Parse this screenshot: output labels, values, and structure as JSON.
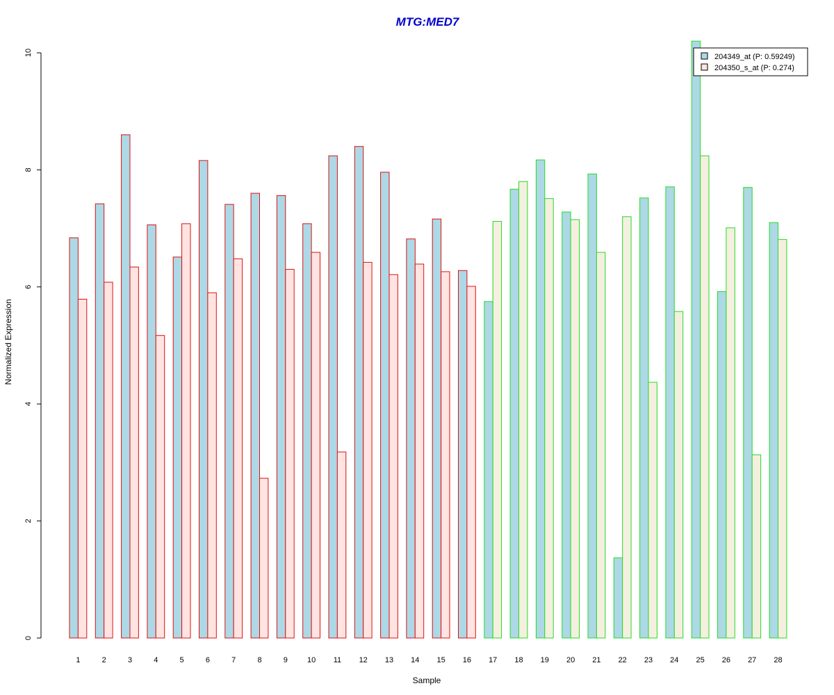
{
  "chart_data": {
    "type": "bar",
    "title": "MTG:MED7",
    "title_color": "#0000CC",
    "xlabel": "Sample",
    "ylabel": "Normalized Expression",
    "ylim": [
      0,
      10
    ],
    "yticks": [
      "0",
      "2",
      "4",
      "6",
      "8",
      "10"
    ],
    "grid": false,
    "legend_position": "top-right",
    "categories": [
      "1",
      "2",
      "3",
      "4",
      "5",
      "6",
      "7",
      "8",
      "9",
      "10",
      "11",
      "12",
      "13",
      "14",
      "15",
      "16",
      "17",
      "18",
      "19",
      "20",
      "21",
      "22",
      "23",
      "24",
      "25",
      "26",
      "27",
      "28"
    ],
    "group_border_colors": {
      "group_a": "#DD1111",
      "group_b": "#22DD22"
    },
    "group_a_samples": 16,
    "series": [
      {
        "name": "204349_at (P: 0.59249)",
        "fill": "#ADD8E6",
        "values": [
          6.84,
          7.42,
          8.6,
          7.06,
          6.51,
          8.16,
          7.41,
          7.6,
          7.56,
          7.08,
          8.24,
          8.4,
          7.96,
          6.82,
          7.16,
          6.28,
          5.75,
          7.67,
          8.17,
          7.28,
          7.93,
          1.37,
          7.52,
          7.71,
          10.2,
          5.92,
          7.7,
          7.1
        ]
      },
      {
        "name": "204350_s_at (P: 0.274)",
        "fill": "#FFE4E1",
        "fill_alt": "#F5EFE0",
        "values": [
          5.79,
          6.08,
          6.34,
          5.17,
          7.08,
          5.9,
          6.48,
          2.73,
          6.3,
          6.59,
          3.18,
          6.42,
          6.21,
          6.39,
          6.26,
          6.01,
          7.12,
          7.8,
          7.51,
          7.15,
          6.59,
          7.2,
          4.37,
          5.58,
          8.24,
          7.01,
          3.13,
          6.81
        ]
      }
    ]
  }
}
